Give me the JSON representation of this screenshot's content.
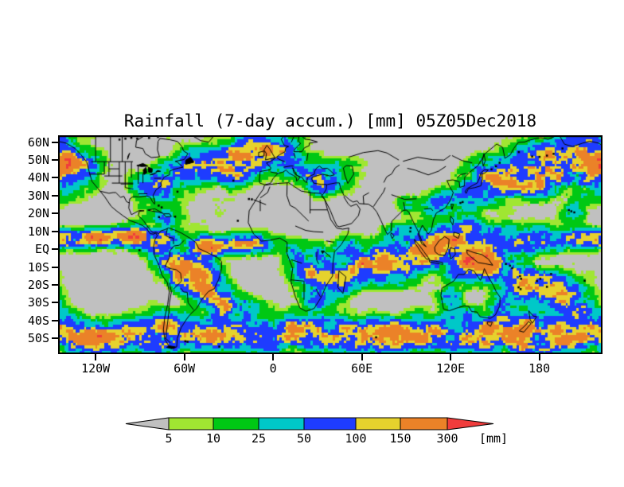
{
  "title": "Rainfall (7-day accum.) [mm] 05Z05Dec2018",
  "axes": {
    "lat_ticks": [
      "60N",
      "50N",
      "40N",
      "30N",
      "20N",
      "10N",
      "EQ",
      "10S",
      "20S",
      "30S",
      "40S",
      "50S"
    ],
    "lon_ticks": [
      "120W",
      "60W",
      "0",
      "60E",
      "120E",
      "180"
    ]
  },
  "colorbar": {
    "levels": [
      "5",
      "10",
      "25",
      "50",
      "100",
      "150",
      "300"
    ],
    "unit_label": "[mm]",
    "segment_colors": [
      "#a0e632",
      "#00c814",
      "#00c8c8",
      "#1e3cff",
      "#e6d22d",
      "#eb8228"
    ],
    "below_color": "#c0c0c0",
    "above_color": "#f03c3c"
  },
  "map": {
    "background_color": "#c0c0c0",
    "coastline_color": "#000000"
  },
  "chart_data": {
    "type": "heatmap",
    "title": "Rainfall (7-day accum.) [mm] 05Z05Dec2018",
    "variable": "Rainfall (7-day accum.)",
    "unit": "mm",
    "valid_time": "05Z05Dec2018",
    "y_tick_labels": [
      "60N",
      "50N",
      "40N",
      "30N",
      "20N",
      "10N",
      "EQ",
      "10S",
      "20S",
      "30S",
      "40S",
      "50S"
    ],
    "x_tick_labels": [
      "120W",
      "60W",
      "0",
      "60E",
      "120E",
      "180"
    ],
    "legend": {
      "thresholds": [
        5,
        10,
        25,
        50,
        100,
        150,
        300
      ],
      "colors": [
        "#a0e632",
        "#00c814",
        "#00c8c8",
        "#1e3cff",
        "#e6d22d",
        "#eb8228"
      ],
      "below_threshold_color": "#c0c0c0",
      "above_threshold_color": "#f03c3c",
      "unit": "[mm]"
    }
  }
}
